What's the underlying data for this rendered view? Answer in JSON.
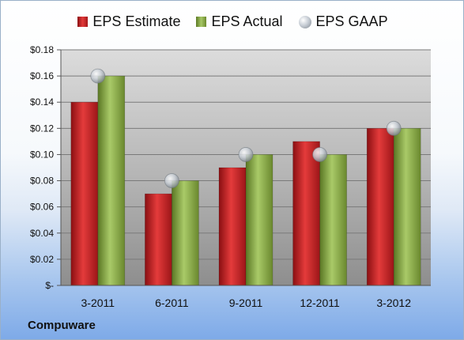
{
  "company": "Compuware",
  "legend": {
    "estimate": "EPS Estimate",
    "actual": "EPS Actual",
    "gaap": "EPS GAAP"
  },
  "colors": {
    "estimate": "#cc2427",
    "actual": "#8db04a",
    "gaap": "#b9c0c8"
  },
  "chart_data": {
    "type": "bar",
    "categories": [
      "3-2011",
      "6-2011",
      "9-2011",
      "12-2011",
      "3-2012"
    ],
    "series": [
      {
        "name": "EPS Estimate",
        "values": [
          0.14,
          0.07,
          0.09,
          0.11,
          0.12
        ]
      },
      {
        "name": "EPS Actual",
        "values": [
          0.16,
          0.08,
          0.1,
          0.1,
          0.12
        ]
      },
      {
        "name": "EPS GAAP",
        "type": "scatter",
        "values": [
          0.16,
          0.08,
          0.1,
          0.1,
          0.12
        ]
      }
    ],
    "ylim": [
      0,
      0.18
    ],
    "yticks": [
      0,
      0.02,
      0.04,
      0.06,
      0.08,
      0.1,
      0.12,
      0.14,
      0.16,
      0.18
    ],
    "ytick_labels": [
      "$-",
      "$0.02",
      "$0.04",
      "$0.06",
      "$0.08",
      "$0.10",
      "$0.12",
      "$0.14",
      "$0.16",
      "$0.18"
    ],
    "legend_position": "top",
    "grid": true
  }
}
